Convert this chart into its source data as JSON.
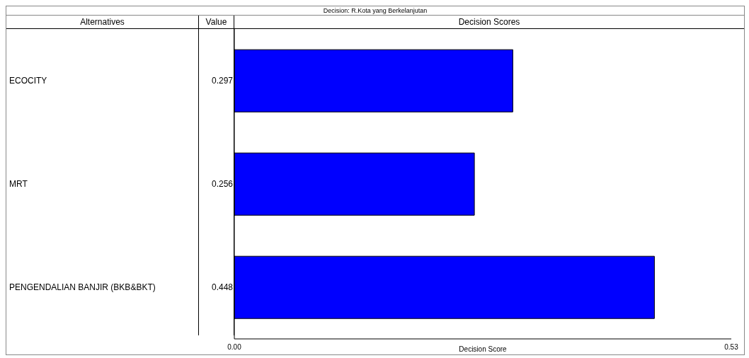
{
  "chart_data": {
    "type": "bar",
    "orientation": "horizontal",
    "title": "Decision: R.Kota yang Berkelanjutan",
    "ylabel": "Alternatives",
    "xlabel": "Decision Score",
    "annotations": [
      "Value",
      "Decision Scores"
    ],
    "categories": [
      "ECOCITY",
      "MRT",
      "PENGENDALIAN BANJIR (BKB&BKT)"
    ],
    "values": [
      0.297,
      0.256,
      0.448
    ],
    "color": "#0000ff",
    "xlim": [
      0,
      0.53
    ],
    "xticks": [
      {
        "value": 0,
        "label": "0.00"
      },
      {
        "value": 0.53,
        "label": "0.53"
      }
    ],
    "data_labels": true,
    "grid": false
  }
}
